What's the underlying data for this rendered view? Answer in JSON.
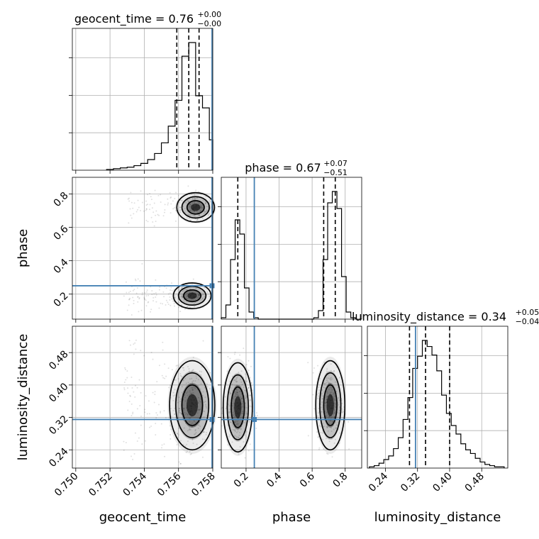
{
  "chart_data": {
    "type": "corner",
    "parameters": [
      "geocent_time",
      "phase",
      "luminosity_distance"
    ],
    "axis_labels": [
      "geocent_time",
      "phase",
      "luminosity_distance"
    ],
    "ranges": [
      [
        0.7498,
        0.758
      ],
      [
        0.05,
        0.9
      ],
      [
        0.195,
        0.545
      ]
    ],
    "ticks": [
      [
        0.75,
        0.752,
        0.754,
        0.756,
        0.758
      ],
      [
        0.2,
        0.4,
        0.6,
        0.8
      ],
      [
        0.24,
        0.32,
        0.4,
        0.48
      ]
    ],
    "tick_labels": [
      [
        "0.750",
        "0.752",
        "0.754",
        "0.756",
        "0.758"
      ],
      [
        "0.2",
        "0.4",
        "0.6",
        "0.8"
      ],
      [
        "0.24",
        "0.32",
        "0.40",
        "0.48"
      ]
    ],
    "truths": [
      0.758,
      0.25,
      0.315
    ],
    "titles": [
      {
        "text": "geocent_time = 0.76",
        "plus": "+0.00",
        "minus": "−0.00"
      },
      {
        "text": "phase = 0.67",
        "plus": "+0.07",
        "minus": "−0.51"
      },
      {
        "text": "luminosity_distance = 0.34",
        "plus": "+0.05",
        "minus": "−0.04"
      }
    ],
    "quantiles": [
      [
        0.7559,
        0.7566,
        0.7572
      ],
      [
        0.15,
        0.67,
        0.74
      ],
      [
        0.3,
        0.34,
        0.4
      ]
    ],
    "histograms": [
      {
        "bin_edges": [
          0.7518,
          0.7522,
          0.7526,
          0.753,
          0.7534,
          0.7538,
          0.7542,
          0.7546,
          0.755,
          0.7554,
          0.7558,
          0.7562,
          0.7566,
          0.757,
          0.7574,
          0.7578,
          0.758
        ],
        "counts": [
          1,
          2,
          3,
          4,
          6,
          9,
          14,
          22,
          36,
          58,
          92,
          150,
          168,
          98,
          82,
          40
        ]
      },
      {
        "bin_edges": [
          0.05,
          0.078,
          0.106,
          0.134,
          0.162,
          0.19,
          0.218,
          0.246,
          0.274,
          0.302,
          0.33,
          0.358,
          0.386,
          0.414,
          0.442,
          0.47,
          0.498,
          0.526,
          0.554,
          0.582,
          0.61,
          0.638,
          0.666,
          0.694,
          0.722,
          0.75,
          0.778,
          0.806,
          0.834,
          0.862
        ],
        "counts": [
          1,
          10,
          42,
          70,
          60,
          22,
          5,
          1,
          0,
          0,
          0,
          0,
          0,
          0,
          0,
          0,
          0,
          0,
          0,
          0,
          1,
          6,
          42,
          82,
          90,
          78,
          30,
          5,
          1
        ]
      },
      {
        "bin_edges": [
          0.2,
          0.212,
          0.224,
          0.236,
          0.248,
          0.26,
          0.272,
          0.284,
          0.296,
          0.308,
          0.32,
          0.332,
          0.344,
          0.356,
          0.368,
          0.38,
          0.392,
          0.404,
          0.416,
          0.428,
          0.44,
          0.452,
          0.464,
          0.476,
          0.488,
          0.5,
          0.512,
          0.524,
          0.536
        ],
        "counts": [
          1,
          2,
          4,
          7,
          10,
          16,
          25,
          40,
          58,
          82,
          92,
          105,
          100,
          93,
          80,
          60,
          45,
          35,
          28,
          20,
          15,
          12,
          8,
          5,
          3,
          2,
          1,
          1
        ]
      }
    ]
  }
}
